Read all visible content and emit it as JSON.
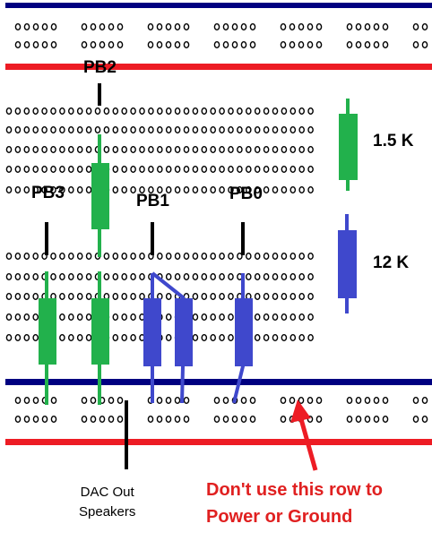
{
  "pin_labels": {
    "pb2": "PB2",
    "pb3": "PB3",
    "pb1": "PB1",
    "pb0": "PB0"
  },
  "legend": {
    "green": {
      "label": "1.5 K",
      "color": "#22b14c"
    },
    "blue": {
      "label": "12 K",
      "color": "#3f48cc"
    }
  },
  "dac_label": {
    "line1": "DAC Out",
    "line2": "Speakers"
  },
  "warning": {
    "line1": "Don't use this row to",
    "line2": "Power or Ground"
  },
  "colors": {
    "rail_blue": "#000080",
    "rail_red": "#ed1c24",
    "warning_text": "#e02020",
    "hole": "#000000"
  }
}
